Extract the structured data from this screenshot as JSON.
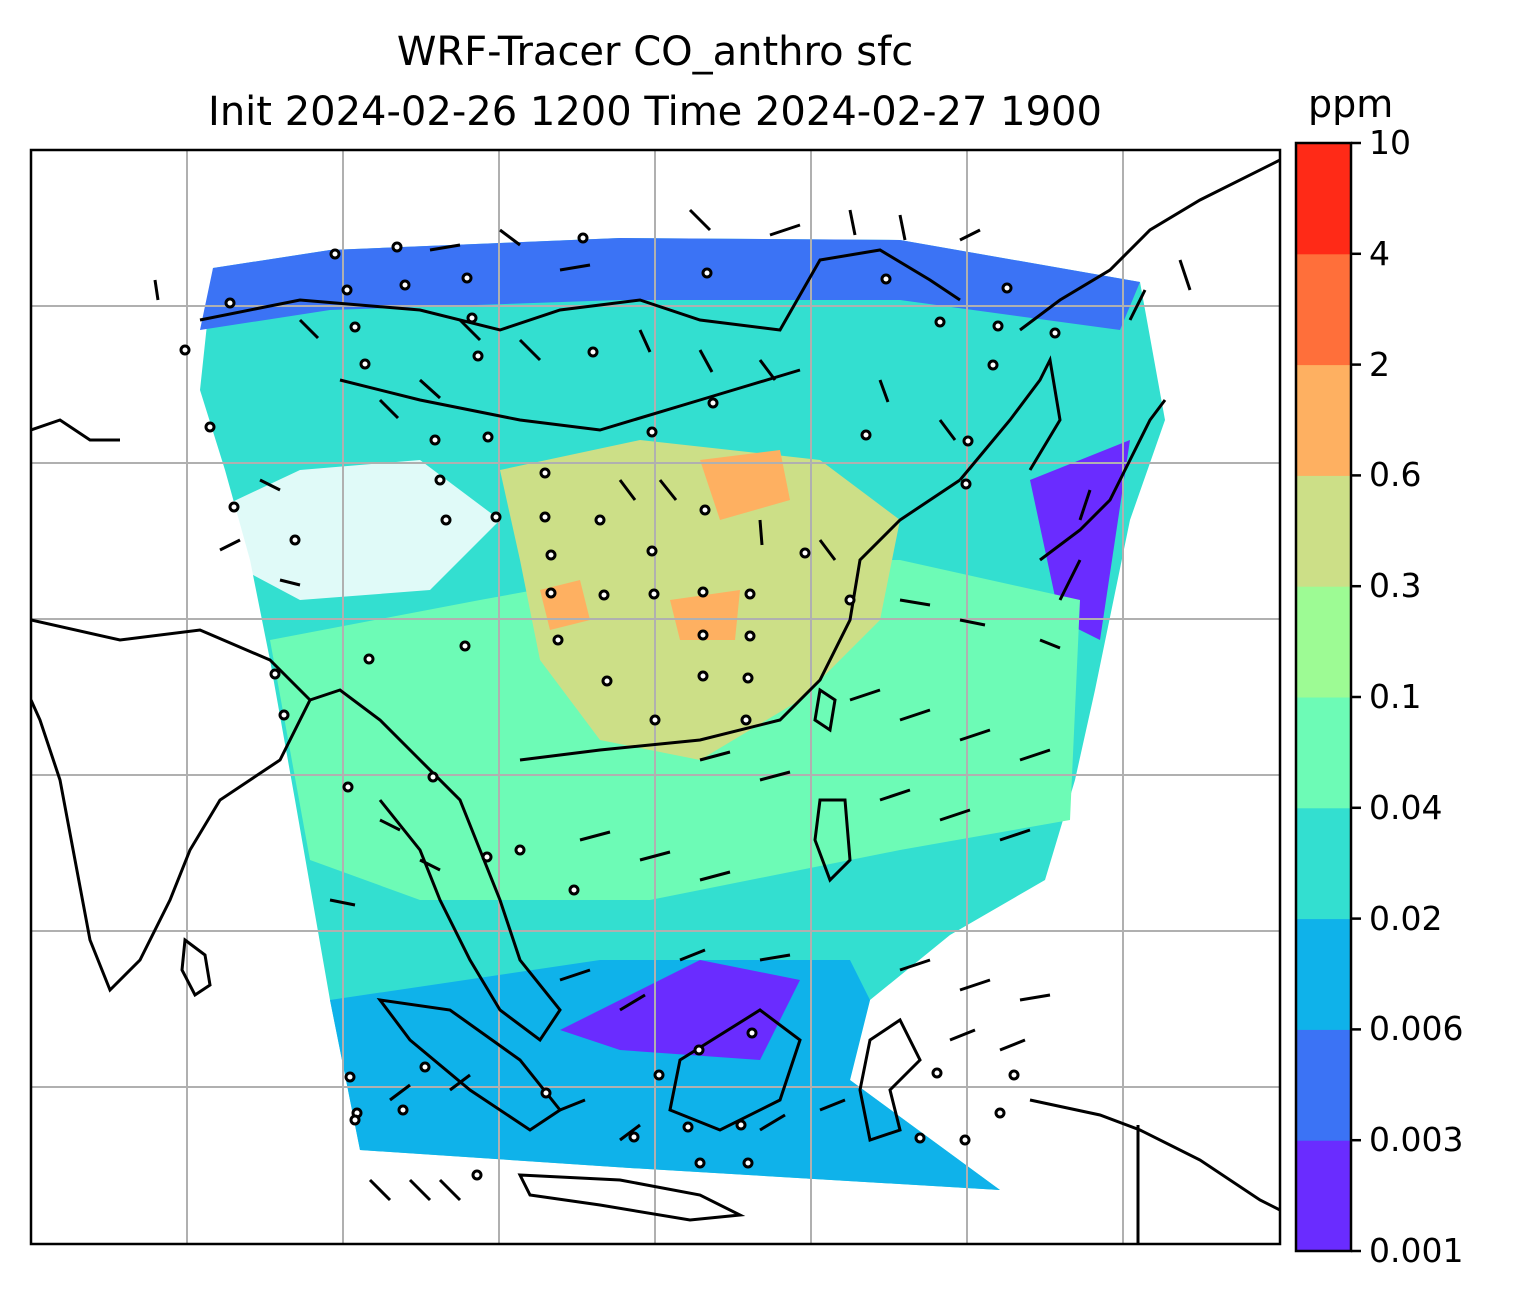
{
  "title": {
    "line1": "WRF-Tracer CO_anthro sfc",
    "line2": "Init 2024-02-26 1200 Time 2024-02-27 1900"
  },
  "colorbar": {
    "unit": "ppm",
    "levels": [
      "0.001",
      "0.003",
      "0.006",
      "0.02",
      "0.04",
      "0.1",
      "0.3",
      "0.6",
      "2",
      "4",
      "10"
    ],
    "colors": [
      "#6a2cff",
      "#3b73f5",
      "#0fb2ea",
      "#33dfd0",
      "#6dfbb6",
      "#9dfb94",
      "#ccdf87",
      "#feb061",
      "#ff6f3a",
      "#ff2a17"
    ]
  },
  "map": {
    "gridlines": true,
    "wind_barbs": true,
    "coastlines": true,
    "background": "#ffffff"
  }
}
